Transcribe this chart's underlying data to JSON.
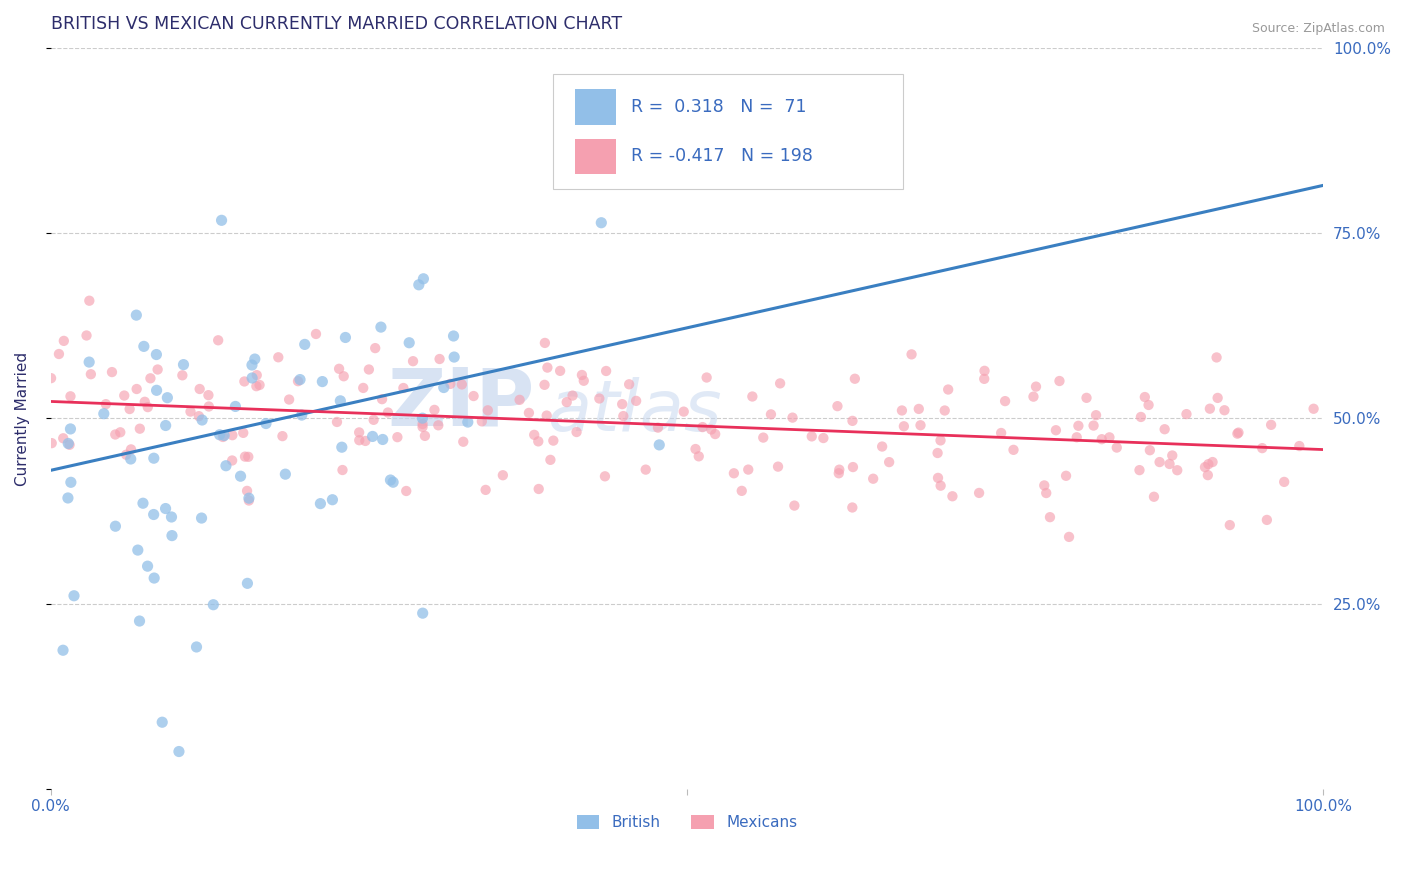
{
  "title": "BRITISH VS MEXICAN CURRENTLY MARRIED CORRELATION CHART",
  "source_text": "Source: ZipAtlas.com",
  "ylabel": "Currently Married",
  "xlim": [
    0,
    1
  ],
  "ylim": [
    0,
    1
  ],
  "british_R": 0.318,
  "british_N": 71,
  "mexican_R": -0.417,
  "mexican_N": 198,
  "british_color": "#92bfe8",
  "mexican_color": "#f5a0b0",
  "british_line_color": "#3a7fc1",
  "mexican_line_color": "#e8305a",
  "title_color": "#2d2d6b",
  "label_color": "#3a6bbf",
  "grid_color": "#cccccc",
  "background_color": "#ffffff",
  "legend_R_color": "#3a6bbf",
  "british_trend_start_y": 0.43,
  "british_trend_end_y": 0.815,
  "mexican_trend_start_y": 0.523,
  "mexican_trend_end_y": 0.458,
  "watermark_ZIP_color": "#c8d8ef",
  "watermark_atlas_color": "#c8d8ef"
}
